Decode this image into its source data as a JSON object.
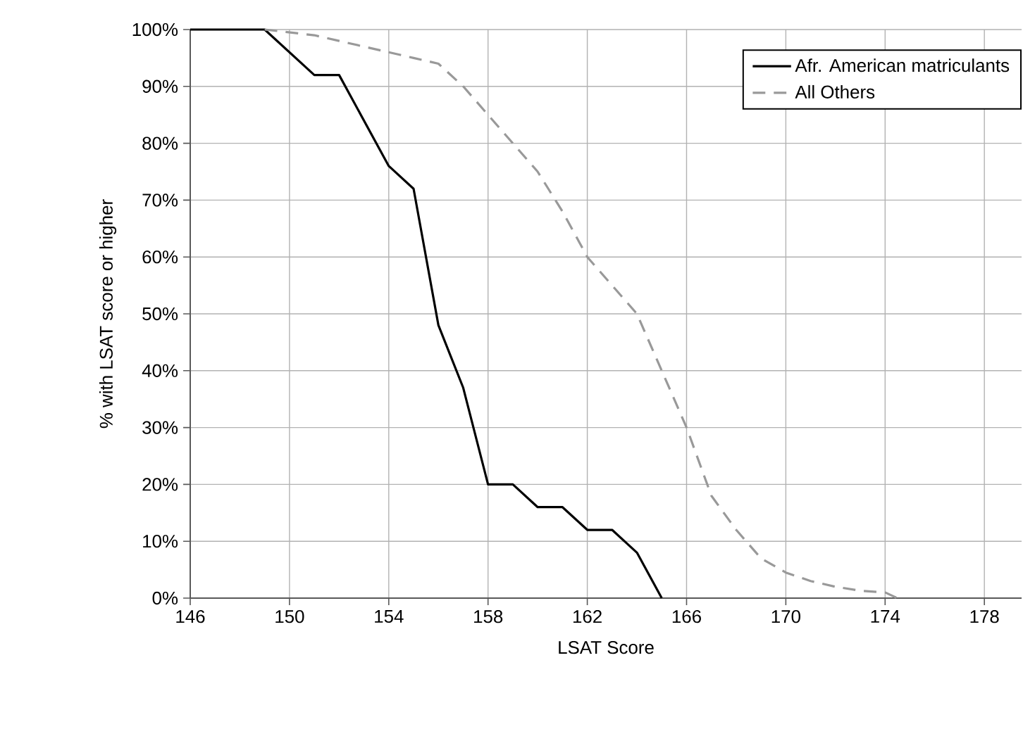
{
  "chart_data": {
    "type": "line",
    "xlabel": "LSAT Score",
    "ylabel": "% with LSAT score or higher",
    "xlim": [
      146,
      179.5
    ],
    "xticks": [
      146,
      150,
      154,
      158,
      162,
      166,
      170,
      174,
      178
    ],
    "ylim": [
      0,
      100
    ],
    "yticks": [
      {
        "value": 0,
        "label": "0%"
      },
      {
        "value": 10,
        "label": "10%"
      },
      {
        "value": 20,
        "label": "20%"
      },
      {
        "value": 30,
        "label": "30%"
      },
      {
        "value": 40,
        "label": "40%"
      },
      {
        "value": 50,
        "label": "50%"
      },
      {
        "value": 60,
        "label": "60%"
      },
      {
        "value": 70,
        "label": "70%"
      },
      {
        "value": 80,
        "label": "80%"
      },
      {
        "value": 90,
        "label": "90%"
      },
      {
        "value": 100,
        "label": "100%"
      }
    ],
    "grid": true,
    "legend": "top right",
    "series": [
      {
        "name": "Afr. American matriculants",
        "color": "#000000",
        "line_style": "solid",
        "x": [
          146,
          147,
          148,
          149,
          150,
          151,
          152,
          153,
          154,
          155,
          156,
          157,
          158,
          159,
          160,
          161,
          162,
          163,
          164,
          165
        ],
        "values": [
          100,
          100,
          100,
          100,
          96,
          92,
          92,
          84,
          76,
          72,
          48,
          37,
          20,
          20,
          16,
          16,
          12,
          12,
          8,
          0
        ]
      },
      {
        "name": "All Others",
        "color": "#999999",
        "line_style": "dashed",
        "x": [
          149,
          150,
          151,
          152,
          153,
          154,
          155,
          156,
          157,
          158,
          159,
          160,
          161,
          162,
          163,
          164,
          165,
          166,
          167,
          168,
          169,
          170,
          171,
          172,
          173,
          174,
          174.5
        ],
        "values": [
          100,
          99.5,
          99,
          98,
          97,
          96,
          95,
          94,
          90,
          85,
          80,
          75,
          68,
          60,
          55,
          50,
          40,
          30,
          18,
          12,
          7,
          4.5,
          3,
          2,
          1.3,
          1,
          0
        ]
      }
    ]
  }
}
